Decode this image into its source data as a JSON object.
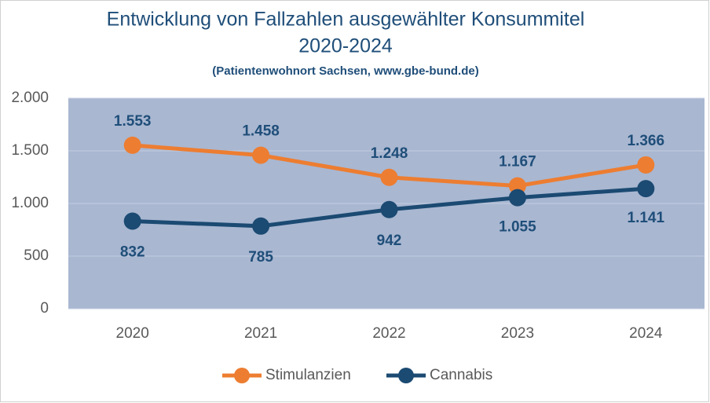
{
  "chart_data": {
    "type": "line",
    "title": [
      "Entwicklung von Fallzahlen ausgewählter Konsummitel",
      "2020-2024"
    ],
    "subtitle": "(Patientenwohnort Sachsen, www.gbe-bund.de)",
    "categories": [
      "2020",
      "2021",
      "2022",
      "2023",
      "2024"
    ],
    "series": [
      {
        "name": "Stimulanzien",
        "color": "#ed7d31",
        "values": [
          1553,
          1458,
          1248,
          1167,
          1366
        ],
        "value_labels": [
          "1.553",
          "1.458",
          "1.248",
          "1.167",
          "1.366"
        ]
      },
      {
        "name": "Cannabis",
        "color": "#1b4a72",
        "values": [
          832,
          785,
          942,
          1055,
          1141
        ],
        "value_labels": [
          "832",
          "785",
          "942",
          "1.055",
          "1.141"
        ]
      }
    ],
    "ylim": [
      0,
      2000
    ],
    "yticks": [
      0,
      500,
      {
        "value": 1000,
        "label": "1.000"
      },
      {
        "value": 1500,
        "label": "1.500"
      },
      {
        "value": 2000,
        "label": "2.000"
      }
    ],
    "grid": true,
    "legend": "bottom"
  }
}
